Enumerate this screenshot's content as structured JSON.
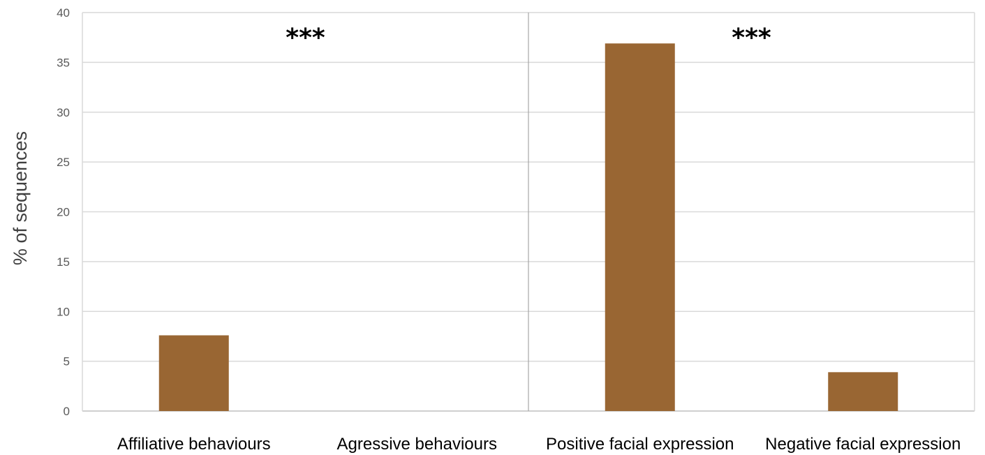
{
  "chart_data": {
    "type": "bar",
    "categories": [
      "Affiliative behaviours",
      "Agressive behaviours",
      "Positive facial expression",
      "Negative facial expression"
    ],
    "values": [
      7.6,
      0,
      36.9,
      3.9
    ],
    "title": "",
    "xlabel": "",
    "ylabel": "% of sequences",
    "ylim": [
      0,
      40
    ],
    "yticks": [
      0,
      5,
      10,
      15,
      20,
      25,
      30,
      35,
      40
    ],
    "grid": true,
    "bar_color": "#996633",
    "grid_color": "#d9d9d9",
    "group_separator_after_category": 1,
    "annotations": [
      {
        "text": "***",
        "group": [
          "Affiliative behaviours",
          "Agressive behaviours"
        ]
      },
      {
        "text": "***",
        "group": [
          "Positive facial expression",
          "Negative facial expression"
        ]
      }
    ]
  }
}
